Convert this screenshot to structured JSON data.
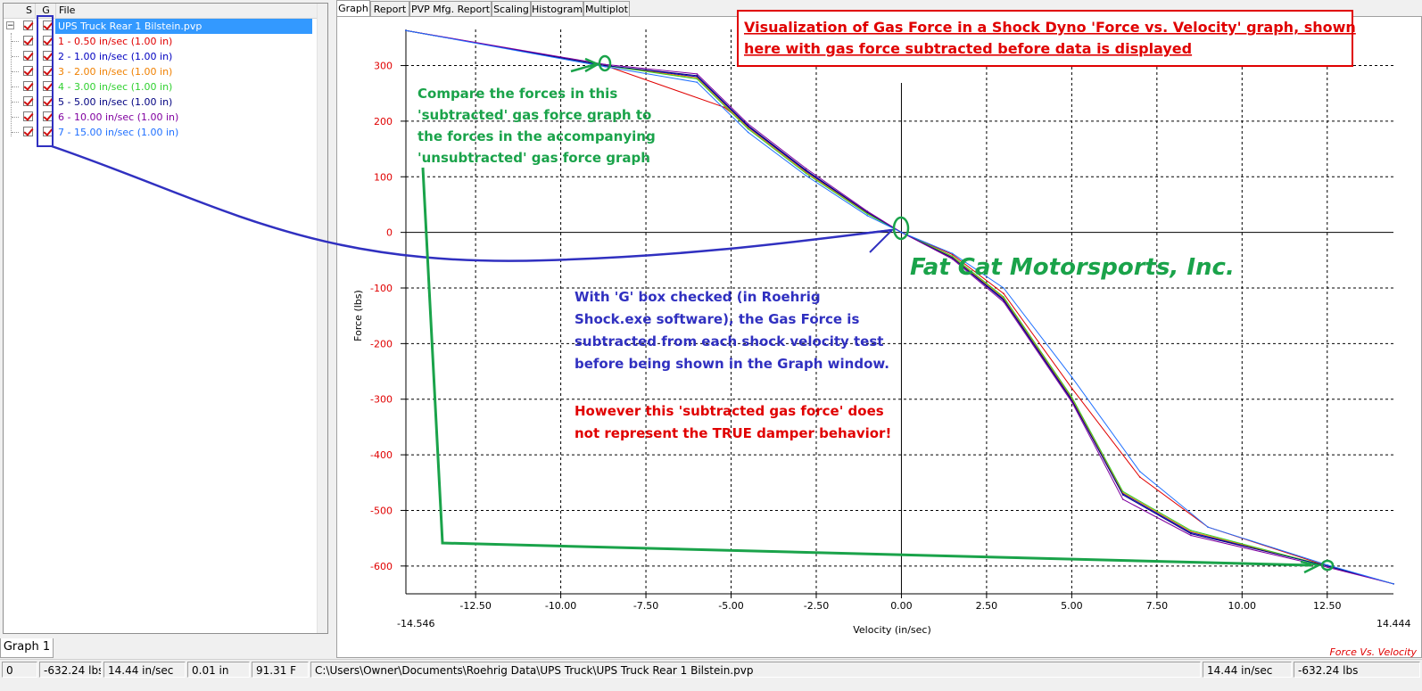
{
  "tree": {
    "headers": {
      "s": "S",
      "g": "G",
      "file": "File"
    },
    "root": "UPS Truck Rear 1 Bilstein.pvp",
    "items": [
      {
        "label": "1 - 0.50 in/sec (1.00 in)",
        "color": "#e00000"
      },
      {
        "label": "2 - 1.00 in/sec (1.00 in)",
        "color": "#0000c0"
      },
      {
        "label": "3 - 2.00 in/sec (1.00 in)",
        "color": "#f08000"
      },
      {
        "label": "4 - 3.00 in/sec (1.00 in)",
        "color": "#30d030"
      },
      {
        "label": "5 - 5.00 in/sec (1.00 in)",
        "color": "#000080"
      },
      {
        "label": "6 - 10.00 in/sec (1.00 in)",
        "color": "#8000a0"
      },
      {
        "label": "7 - 15.00 in/sec (1.00 in)",
        "color": "#2070ff"
      }
    ]
  },
  "tabs": [
    "Graph",
    "Report",
    "PVP Mfg. Report",
    "Scaling",
    "Histogram",
    "Multiplot"
  ],
  "graph_tab": "Graph 1",
  "plot": {
    "xlabel": "Velocity (in/sec)",
    "ylabel": "Force (lbs)",
    "xmin_label": "-14.546",
    "xmax_label": "14.444",
    "xticks": [
      "-12.50",
      "-10.00",
      "-7.50",
      "-5.00",
      "-2.50",
      "0.00",
      "2.50",
      "5.00",
      "7.50",
      "10.00",
      "12.50"
    ],
    "yticks": [
      "300",
      "200",
      "100",
      "0",
      "-100",
      "-200",
      "-300",
      "-400",
      "-500",
      "-600"
    ],
    "corner_label": "Force Vs. Velocity"
  },
  "annotations": {
    "title_lines": [
      "Visualization of Gas Force in a Shock Dyno 'Force vs. Velocity' graph, shown",
      "here with gas force subtracted before data is displayed"
    ],
    "compare_lines": [
      "Compare the forces in this",
      "'subtracted' gas force graph to",
      "the forces in the accompanying",
      "'unsubtracted' gas force graph"
    ],
    "company": "Fat Cat Motorsports, Inc.",
    "gbox_lines": [
      "With 'G' box checked (in Roehrig",
      "Shock.exe software), the Gas Force is",
      "subtracted from each shock velocity test",
      "before being shown in the Graph window."
    ],
    "however_lines": [
      "However this 'subtracted gas force' does",
      "not represent the TRUE damper behavior!"
    ]
  },
  "status": [
    "0",
    "-632.24 lbs",
    "14.44 in/sec",
    "0.01 in",
    "91.31 F",
    "C:\\Users\\Owner\\Documents\\Roehrig Data\\UPS Truck\\UPS Truck Rear 1 Bilstein.pvp",
    "14.44 in/sec",
    "-632.24 lbs"
  ],
  "chart_data": {
    "type": "line",
    "title": "",
    "xlabel": "Velocity (in/sec)",
    "ylabel": "Force (lbs)",
    "xlim": [
      -14.546,
      14.444
    ],
    "ylim": [
      -650,
      365
    ],
    "grid": true,
    "series": [
      {
        "name": "1 - 0.50 in/sec (1.00 in)",
        "color": "#e00000",
        "x": [
          -14.546,
          -8.7,
          -5.2,
          -2.8,
          -1,
          0,
          1.5,
          3,
          5,
          7,
          9,
          12.5,
          14.444
        ],
        "y": [
          363,
          300,
          225,
          110,
          35,
          0,
          -40,
          -110,
          -280,
          -440,
          -530,
          -600,
          -632
        ]
      },
      {
        "name": "2 - 1.00 in/sec (1.00 in)",
        "color": "#0000c0",
        "x": [
          -14.546,
          -8.7,
          -6,
          -4.5,
          -2.8,
          -1,
          0,
          1.5,
          3,
          5,
          6.5,
          8.5,
          12.5,
          14.444
        ],
        "y": [
          363,
          300,
          280,
          190,
          110,
          35,
          0,
          -45,
          -120,
          -300,
          -470,
          -540,
          -600,
          -632
        ]
      },
      {
        "name": "3 - 2.00 in/sec (1.00 in)",
        "color": "#f08000",
        "x": [
          -14.546,
          -8.7,
          -6,
          -4.5,
          -2.8,
          -1,
          0,
          1.5,
          3,
          5,
          6.5,
          8.5,
          12.5,
          14.444
        ],
        "y": [
          363,
          300,
          278,
          188,
          108,
          34,
          0,
          -44,
          -118,
          -298,
          -468,
          -538,
          -600,
          -632
        ]
      },
      {
        "name": "4 - 3.00 in/sec (1.00 in)",
        "color": "#30d030",
        "x": [
          -14.546,
          -8.7,
          -6,
          -4.5,
          -2.8,
          -1,
          0,
          1.5,
          3,
          5,
          6.5,
          8.5,
          12.5,
          14.444
        ],
        "y": [
          363,
          300,
          276,
          186,
          106,
          33,
          0,
          -43,
          -116,
          -296,
          -466,
          -536,
          -600,
          -632
        ]
      },
      {
        "name": "5 - 5.00 in/sec (1.00 in)",
        "color": "#000080",
        "x": [
          -14.546,
          -8.7,
          -6,
          -4.5,
          -2.8,
          -1,
          0,
          1.5,
          3,
          5,
          6.5,
          8.5,
          12.5,
          14.444
        ],
        "y": [
          363,
          300,
          282,
          192,
          112,
          36,
          0,
          -46,
          -122,
          -302,
          -472,
          -542,
          -600,
          -632
        ]
      },
      {
        "name": "6 - 10.00 in/sec (1.00 in)",
        "color": "#8000a0",
        "x": [
          -14.546,
          -8.7,
          -6,
          -4.5,
          -2.8,
          -1,
          0,
          1.5,
          3,
          5,
          6.5,
          8.5,
          12.5,
          14.444
        ],
        "y": [
          363,
          302,
          285,
          195,
          115,
          38,
          0,
          -48,
          -125,
          -305,
          -480,
          -545,
          -602,
          -632
        ]
      },
      {
        "name": "7 - 15.00 in/sec (1.00 in)",
        "color": "#2070ff",
        "x": [
          -14.546,
          -8.7,
          -6,
          -4.5,
          -2.8,
          -1,
          0,
          1.5,
          3,
          5,
          7,
          9,
          12.5,
          14.444
        ],
        "y": [
          363,
          298,
          270,
          180,
          102,
          30,
          0,
          -38,
          -100,
          -260,
          -430,
          -530,
          -598,
          -632
        ]
      }
    ]
  }
}
